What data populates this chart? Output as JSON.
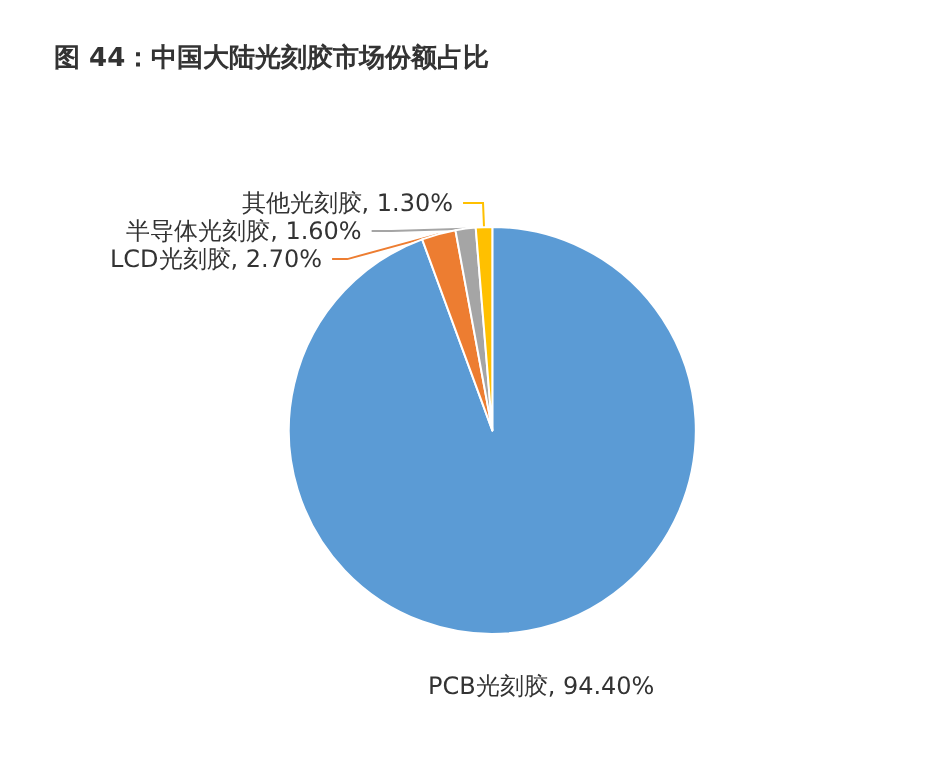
{
  "chart_data": {
    "type": "pie",
    "title": "图 44：中国大陆光刻胶市场份额占比",
    "categories": [
      "PCB光刻胶",
      "LCD光刻胶",
      "半导体光刻胶",
      "其他光刻胶"
    ],
    "values": [
      94.4,
      2.7,
      1.6,
      1.3
    ],
    "colors": [
      "#5b9bd5",
      "#ed7d31",
      "#a5a5a5",
      "#ffc000"
    ],
    "value_labels": [
      "94.40%",
      "2.70%",
      "1.60%",
      "1.30%"
    ],
    "legend": false
  }
}
